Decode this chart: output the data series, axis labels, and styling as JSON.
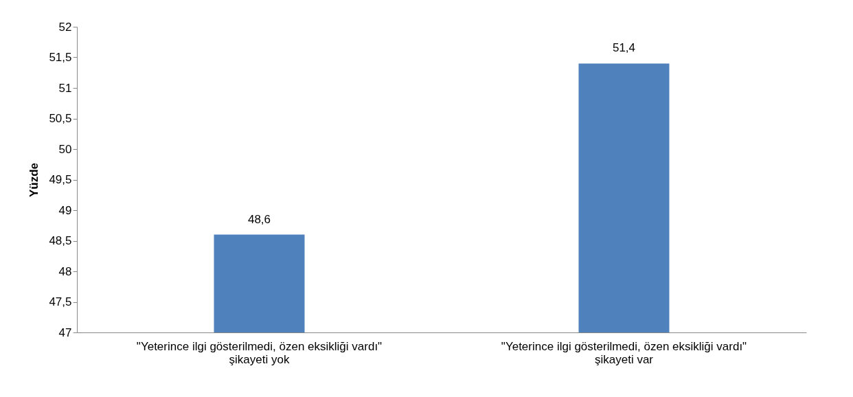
{
  "chart_data": {
    "type": "bar",
    "ylabel": "Yüzde",
    "categories": [
      "\"Yeterince ilgi gösterilmedi, özen eksikliği vardı\"\nşikayeti yok",
      "\"Yeterince ilgi gösterilmedi, özen eksikliği vardı\"\nşikayeti var"
    ],
    "values": [
      48.6,
      51.4
    ],
    "color": "#4f81bd",
    "value_labels": [
      "48,6",
      "51,4"
    ],
    "ylim": [
      47,
      52
    ],
    "yticks": [
      47,
      {
        "value": 47.5,
        "label": "47,5"
      },
      48,
      {
        "value": 48.5,
        "label": "48,5"
      },
      49,
      {
        "value": 49.5,
        "label": "49,5"
      },
      50,
      {
        "value": 50.5,
        "label": "50,5"
      },
      51,
      {
        "value": 51.5,
        "label": "51,5"
      },
      52
    ],
    "grid": false
  }
}
